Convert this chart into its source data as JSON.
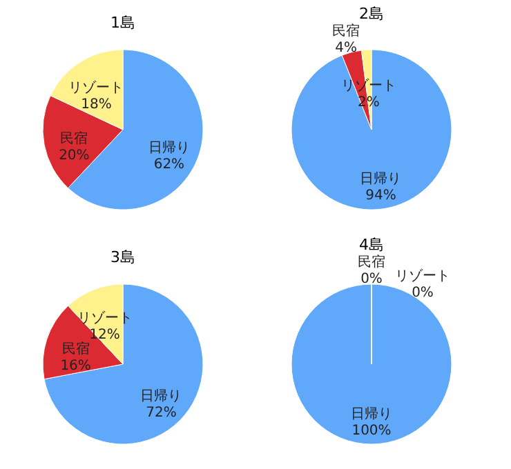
{
  "chart_data": [
    {
      "type": "pie",
      "title": "1島",
      "categories": [
        "日帰り",
        "民宿",
        "リゾート"
      ],
      "values": [
        62,
        20,
        18
      ],
      "colors": [
        "#5fa8fa",
        "#dc2a33",
        "#fff28c"
      ],
      "value_labels": [
        "62%",
        "20%",
        "18%"
      ]
    },
    {
      "type": "pie",
      "title": "2島",
      "categories": [
        "日帰り",
        "民宿",
        "リゾート"
      ],
      "values": [
        94,
        4,
        2
      ],
      "colors": [
        "#5fa8fa",
        "#dc2a33",
        "#fff28c"
      ],
      "value_labels": [
        "94%",
        "4%",
        "2%"
      ]
    },
    {
      "type": "pie",
      "title": "3島",
      "categories": [
        "日帰り",
        "民宿",
        "リゾート"
      ],
      "values": [
        72,
        16,
        12
      ],
      "colors": [
        "#5fa8fa",
        "#dc2a33",
        "#fff28c"
      ],
      "value_labels": [
        "72%",
        "16%",
        "12%"
      ]
    },
    {
      "type": "pie",
      "title": "4島",
      "categories": [
        "日帰り",
        "民宿",
        "リゾート"
      ],
      "values": [
        100,
        0,
        0
      ],
      "colors": [
        "#5fa8fa",
        "#dc2a33",
        "#fff28c"
      ],
      "value_labels": [
        "100%",
        "0%",
        "0%"
      ]
    }
  ]
}
